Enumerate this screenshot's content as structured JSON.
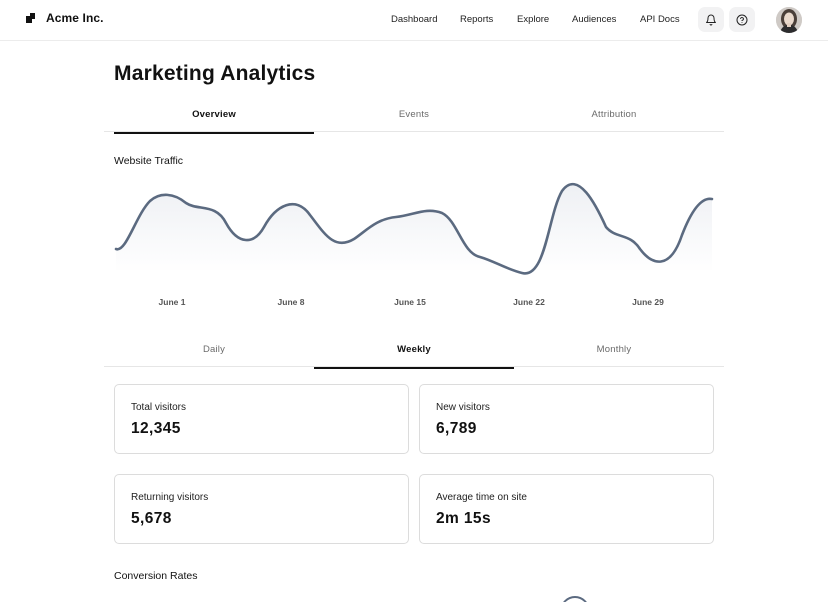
{
  "header": {
    "brand": "Acme Inc.",
    "nav": [
      "Dashboard",
      "Reports",
      "Explore",
      "Audiences",
      "API Docs"
    ],
    "icons": {
      "notifications": "bell-icon",
      "help": "help-circle-icon",
      "avatar": "user-avatar"
    }
  },
  "page": {
    "title": "Marketing Analytics"
  },
  "main_tabs": {
    "items": [
      "Overview",
      "Events",
      "Attribution"
    ],
    "active": "Overview"
  },
  "traffic": {
    "title": "Website Traffic",
    "chart_data": {
      "type": "area",
      "x_tick_labels": [
        "June 1",
        "June 8",
        "June 15",
        "June 22",
        "June 29"
      ],
      "series_color": "#5b6a80",
      "fill_color": "#eef0f4",
      "grid": false,
      "legend": "none"
    }
  },
  "range_tabs": {
    "items": [
      "Daily",
      "Weekly",
      "Monthly"
    ],
    "active": "Weekly"
  },
  "stats": [
    {
      "label": "Total visitors",
      "value": "12,345"
    },
    {
      "label": "New visitors",
      "value": "6,789"
    },
    {
      "label": "Returning visitors",
      "value": "5,678"
    },
    {
      "label": "Average time on site",
      "value": "2m 15s"
    }
  ],
  "conversion": {
    "title": "Conversion Rates"
  }
}
